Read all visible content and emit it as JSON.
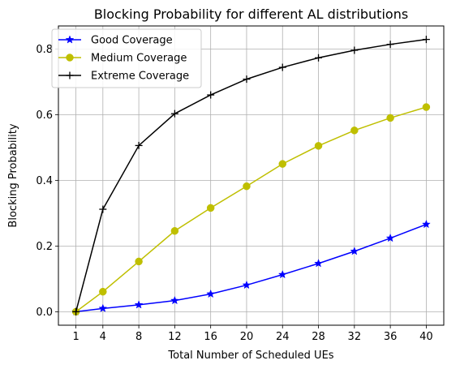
{
  "chart_data": {
    "type": "line",
    "title": "Blocking Probability for different AL distributions",
    "xlabel": "Total Number of Scheduled UEs",
    "ylabel": "Blocking Probability",
    "x": [
      1,
      4,
      8,
      12,
      16,
      20,
      24,
      28,
      32,
      36,
      40
    ],
    "x_ticks": [
      1,
      4,
      8,
      12,
      16,
      20,
      24,
      28,
      32,
      36,
      40
    ],
    "y_ticks": [
      0.0,
      0.2,
      0.4,
      0.6,
      0.8
    ],
    "y_tick_labels": [
      "0.0",
      "0.2",
      "0.4",
      "0.6",
      "0.8"
    ],
    "xlim": [
      -0.95,
      41.95
    ],
    "ylim": [
      -0.041,
      0.87
    ],
    "grid": true,
    "legend_position": "top-left",
    "series": [
      {
        "name": "Good Coverage",
        "color": "#0000ff",
        "marker": "star",
        "values": [
          0.0,
          0.01,
          0.021,
          0.034,
          0.054,
          0.081,
          0.113,
          0.147,
          0.184,
          0.224,
          0.266
        ]
      },
      {
        "name": "Medium Coverage",
        "color": "#bfbf00",
        "marker": "circle",
        "values": [
          0.0,
          0.061,
          0.153,
          0.246,
          0.316,
          0.382,
          0.45,
          0.505,
          0.552,
          0.59,
          0.623
        ]
      },
      {
        "name": "Extreme Coverage",
        "color": "#000000",
        "marker": "plus",
        "values": [
          0.0,
          0.312,
          0.506,
          0.603,
          0.66,
          0.708,
          0.744,
          0.773,
          0.796,
          0.814,
          0.829
        ]
      }
    ]
  }
}
